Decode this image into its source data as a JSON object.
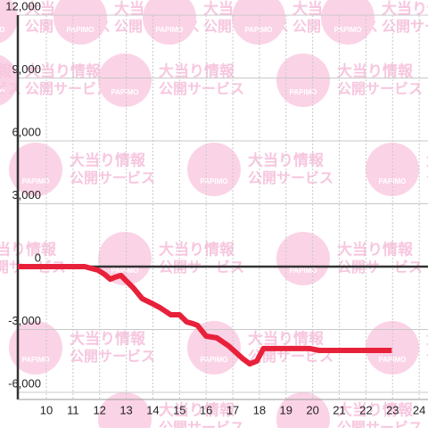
{
  "chart_data": {
    "type": "line",
    "watermark": {
      "brand": "PAPIMO",
      "line1": "大当り情報",
      "line2": "公開サービス"
    },
    "x": [
      8.93,
      11.44,
      11.94,
      12.2,
      12.4,
      12.6,
      12.8,
      13.0,
      13.27,
      13.6,
      13.94,
      14.27,
      14.67,
      15.0,
      15.27,
      15.5,
      15.67,
      16.0,
      16.4,
      16.85,
      17.4,
      17.64,
      17.9,
      18.15,
      18.58,
      19.9,
      20.25,
      22.97
    ],
    "series": [
      {
        "color": "#e8213a",
        "values": [
          0,
          0,
          -170,
          -380,
          -600,
          -500,
          -420,
          -680,
          -1020,
          -1530,
          -1740,
          -1960,
          -2300,
          -2300,
          -2640,
          -2720,
          -2800,
          -3320,
          -3400,
          -3790,
          -4420,
          -4640,
          -4510,
          -3910,
          -3910,
          -3910,
          -4000,
          -4000
        ]
      }
    ],
    "xlim": [
      8.93,
      24.33
    ],
    "xticks": [
      10,
      11,
      12,
      13,
      14,
      15,
      16,
      17,
      18,
      19,
      20,
      21,
      22,
      23,
      24
    ],
    "ylim": [
      -6000,
      12000
    ],
    "yticks": [
      {
        "value": -6000,
        "label": "-6,000"
      },
      {
        "value": -3000,
        "label": "-3,000"
      },
      0,
      {
        "value": 3000,
        "label": "3,000"
      },
      {
        "value": 6000,
        "label": "6,000"
      },
      {
        "value": 9000,
        "label": "9,000"
      },
      {
        "value": 12000,
        "label": "12,000"
      }
    ],
    "grid": true
  }
}
